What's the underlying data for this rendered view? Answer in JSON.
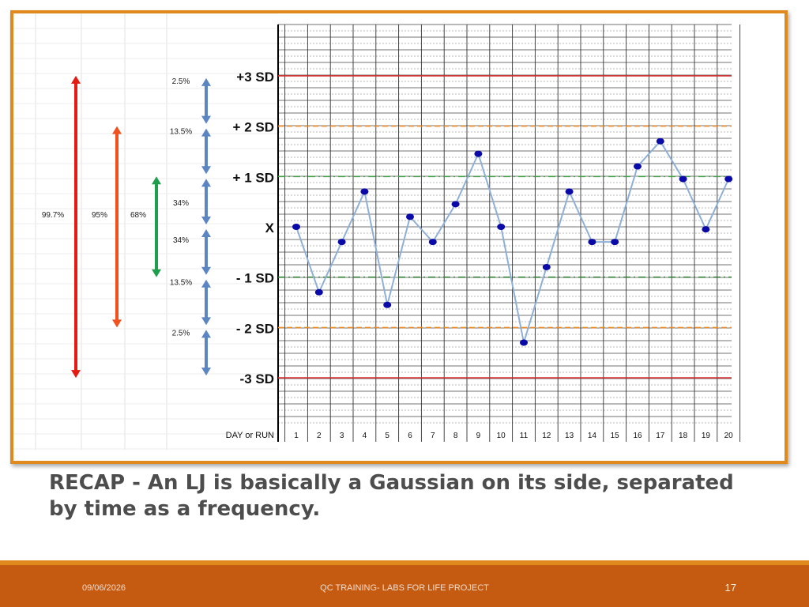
{
  "slide": {
    "recap": "RECAP - An LJ is basically a Gaussian on its side, separated by time as a frequency.",
    "footer_date": "09/06/2026",
    "footer_center": "QC TRAINING- LABS FOR LIFE PROJECT",
    "page_number": "17"
  },
  "chart_data": {
    "type": "line",
    "title": "",
    "xlabel": "DAY or RUN",
    "ylabel": "",
    "x": [
      1,
      2,
      3,
      4,
      5,
      6,
      7,
      8,
      9,
      10,
      11,
      12,
      13,
      14,
      15,
      16,
      17,
      18,
      19,
      20
    ],
    "series": [
      {
        "values": [
          0.0,
          -1.3,
          -0.3,
          0.7,
          -1.55,
          0.2,
          -0.3,
          0.45,
          1.45,
          0.0,
          -2.3,
          -0.8,
          0.7,
          -0.3,
          -0.3,
          1.2,
          1.7,
          0.95,
          -0.05,
          0.95
        ]
      }
    ],
    "ylim": [
      -3.9,
      4.0
    ],
    "y_tick_labels": [
      {
        "value": 3,
        "label": "+3 SD"
      },
      {
        "value": 2,
        "label": "+ 2 SD"
      },
      {
        "value": 1,
        "label": "+ 1 SD"
      },
      {
        "value": 0,
        "label": "X"
      },
      {
        "value": -1,
        "label": "- 1 SD"
      },
      {
        "value": -2,
        "label": "- 2 SD"
      },
      {
        "value": -3,
        "label": "-3 SD"
      }
    ],
    "control_lines": [
      {
        "value": 3,
        "color": "#d32f2f",
        "style": "solid"
      },
      {
        "value": 2,
        "color": "#f28c28",
        "style": "dash"
      },
      {
        "value": 1,
        "color": "#43a047",
        "style": "dashdot"
      },
      {
        "value": -1,
        "color": "#2e7d32",
        "style": "dashdot"
      },
      {
        "value": -2,
        "color": "#ef8a1f",
        "style": "dash"
      },
      {
        "value": -3,
        "color": "#d32f2f",
        "style": "solid"
      }
    ],
    "grid": true,
    "band_percents": [
      {
        "from": 2,
        "to": 3,
        "label": "2.5%"
      },
      {
        "from": 1,
        "to": 2,
        "label": "13.5%"
      },
      {
        "from": 0,
        "to": 1,
        "label": "34%"
      },
      {
        "from": -1,
        "to": 0,
        "label": "34%"
      },
      {
        "from": -2,
        "to": -1,
        "label": "13.5%"
      },
      {
        "from": -3,
        "to": -2,
        "label": "2.5%"
      }
    ],
    "range_arrows": [
      {
        "label": "99.7%",
        "from": -3,
        "to": 3,
        "color": "#e31b12"
      },
      {
        "label": "95%",
        "from": -2,
        "to": 2,
        "color": "#f0511e"
      },
      {
        "label": "68%",
        "from": -1,
        "to": 1,
        "color": "#1f9e4d"
      }
    ],
    "colors": {
      "line": "#8fb0d6",
      "point": "#0a0aa8",
      "band_arrow": "#5b86c2",
      "grid": "#555555"
    }
  }
}
